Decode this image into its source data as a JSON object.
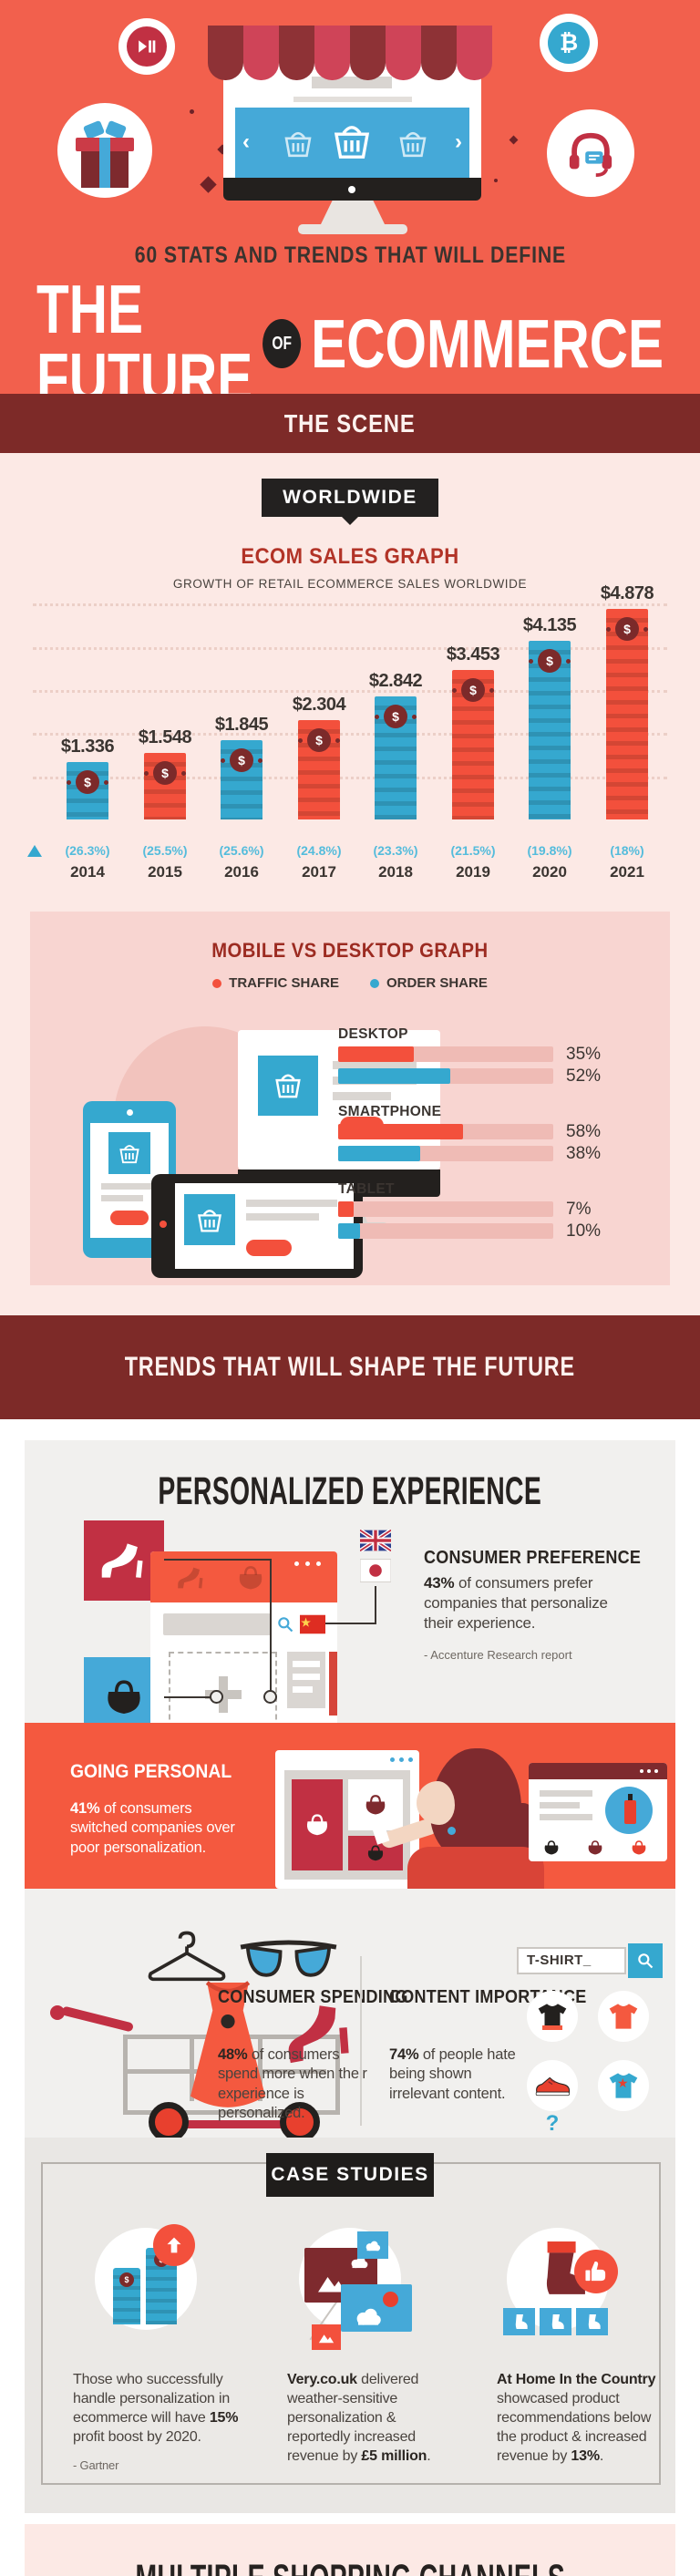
{
  "colors": {
    "hero_bg": "#f2604d",
    "band_maroon": "#7d2a28",
    "pink_bg": "#fce9e5",
    "pink_card": "#f8d5d1",
    "accent_red": "#f3503c",
    "accent_blue": "#35a8cf",
    "dark_red": "#c13043",
    "deep_maroon": "#7e2a2e",
    "gray_card": "#f1f0ee",
    "text_dark": "#2b2622",
    "text_body": "#49433e",
    "growth_blue": "#54bcdc",
    "going_personal_bg": "#f4593f",
    "tag_black": "#232120"
  },
  "header": {
    "kicker": "60 STATS AND TRENDS THAT WILL DEFINE",
    "title_start": "THE FUTURE",
    "title_of": "OF",
    "title_end": "ECOMMERCE"
  },
  "scene_band": {
    "title": "THE SCENE"
  },
  "worldwide_tag": "WORLDWIDE",
  "chart_data": [
    {
      "type": "bar",
      "title": "ECOM SALES GRAPH",
      "subtitle": "GROWTH OF RETAIL ECOMMERCE SALES WORLDWIDE",
      "categories": [
        "2014",
        "2015",
        "2016",
        "2017",
        "2018",
        "2019",
        "2020",
        "2021"
      ],
      "values": [
        1.336,
        1.548,
        1.845,
        2.304,
        2.842,
        3.453,
        4.135,
        4.878
      ],
      "value_labels": [
        "$1.336",
        "$1.548",
        "$1.845",
        "$2.304",
        "$2.842",
        "$3.453",
        "$4.135",
        "$4.878"
      ],
      "growth_labels": [
        "(26.3%)",
        "(25.5%)",
        "(25.6%)",
        "(24.8%)",
        "(23.3%)",
        "(21.5%)",
        "(19.8%)",
        "(18%)"
      ],
      "bar_colors": [
        "#35a8cf",
        "#f3503c",
        "#35a8cf",
        "#f3503c",
        "#35a8cf",
        "#f3503c",
        "#35a8cf",
        "#f3503c"
      ],
      "ylim": [
        0,
        5
      ],
      "gridlines": "dotted horizontal at 1,2,3,4,5"
    },
    {
      "type": "bar",
      "orientation": "horizontal",
      "title": "MOBILE VS DESKTOP GRAPH",
      "categories": [
        "DESKTOP",
        "SMARTPHONE",
        "TABLET"
      ],
      "series": [
        {
          "name": "TRAFFIC SHARE",
          "color": "#f3503c",
          "values": [
            35,
            58,
            7
          ]
        },
        {
          "name": "ORDER SHARE",
          "color": "#35a8cf",
          "values": [
            52,
            38,
            10
          ]
        }
      ],
      "value_suffix": "%",
      "xlim": [
        0,
        100
      ],
      "legend_position": "top"
    }
  ],
  "trends_band": {
    "title": "TRENDS THAT WILL SHAPE THE FUTURE"
  },
  "personalized": {
    "title": "PERSONALIZED EXPERIENCE",
    "consumer_preference": {
      "heading": "CONSUMER PREFERENCE",
      "stat": "43%",
      "text": " of consumers prefer companies that personalize their experience.",
      "source": "- Accenture Research report"
    },
    "going_personal": {
      "heading": "GOING PERSONAL",
      "stat": "41%",
      "text": " of consumers switched companies over poor personalization."
    },
    "consumer_spending": {
      "heading": "CONSUMER SPENDING",
      "stat": "48%",
      "text": " of consumers spend more when their experience is personalized."
    },
    "content_importance": {
      "heading": "CONTENT IMPORTANCE",
      "stat": "74%",
      "text": " of people hate being shown irrelevant content."
    },
    "search_demo": {
      "query": "T-SHIRT_"
    }
  },
  "case_studies": {
    "tag": "CASE STUDIES",
    "items": [
      {
        "parts": [
          {
            "t": "Those who successfully handle personalization in ecommerce will have "
          },
          {
            "t": "15%",
            "b": true
          },
          {
            "t": " profit boost by 2020."
          }
        ],
        "source": "- Gartner"
      },
      {
        "parts": [
          {
            "t": "Very.co.uk",
            "b": true
          },
          {
            "t": " delivered weather-sensitive personalization & reportedly increased revenue by "
          },
          {
            "t": "£5 million",
            "b": true
          },
          {
            "t": "."
          }
        ]
      },
      {
        "parts": [
          {
            "t": "At Home In the Country",
            "b": true
          },
          {
            "t": " showcased product recommendations below the product & increased revenue by "
          },
          {
            "t": "13%",
            "b": true
          },
          {
            "t": "."
          }
        ]
      }
    ]
  },
  "next_section": {
    "title": "MULTIPLE SHOPPING CHANNELS"
  }
}
